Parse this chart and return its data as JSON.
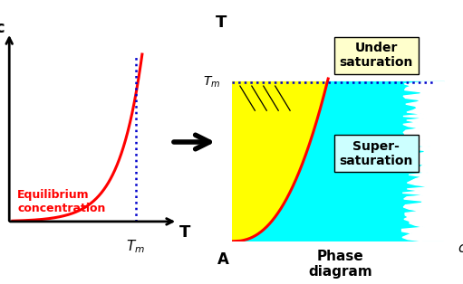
{
  "bg_color": "#ffffff",
  "left_panel": {
    "curve_color": "#ff0000",
    "dashed_color": "#0000cc",
    "axis_color": "#000000",
    "label_c": "c",
    "label_T": "T",
    "eq_text": "Equilibrium\nconcentration",
    "eq_text_color": "#ff0000"
  },
  "right_panel": {
    "curve_color": "#ff0000",
    "dashed_color": "#0000cc",
    "yellow_color": "#ffff00",
    "cyan_color": "#00ffff",
    "axis_color": "#000000",
    "label_T": "T",
    "label_cB": "c_B",
    "label_Tm": "T_m",
    "label_A": "A",
    "under_text": "Under\nsaturation",
    "under_bg": "#ffffcc",
    "super_text": "Super-\nsaturation",
    "super_bg": "#ccffff",
    "title": "Phase\ndiagram"
  },
  "arrow_color": "#000000"
}
